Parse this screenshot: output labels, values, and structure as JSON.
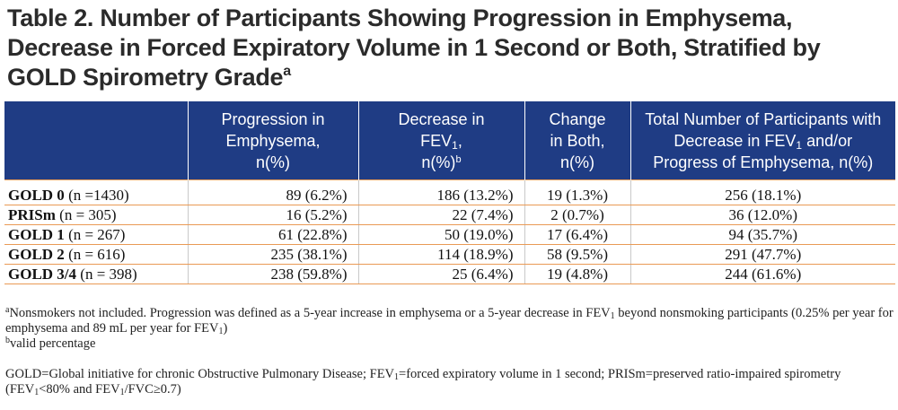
{
  "title": {
    "line1": "Table 2. Number of Participants Showing Progression in Emphysema,",
    "line2": "Decrease in Forced Expiratory Volume in 1 Second or Both, Stratified by",
    "line3": "GOLD Spirometry Grade",
    "sup": "a"
  },
  "header": {
    "col1": [
      "Progression in",
      "Emphysema,",
      "n(%)"
    ],
    "col2": {
      "line1": "Decrease in",
      "line2_a": "FEV",
      "line2_sub": "1",
      "line2_b": ",",
      "line3_a": "n(%)",
      "line3_sup": "b"
    },
    "col3": [
      "Change",
      "in Both,",
      "n(%)"
    ],
    "col4": {
      "line1": "Total Number of Participants with",
      "line2_a": "Decrease in FEV",
      "line2_sub": "1",
      "line2_b": " and/or",
      "line3": "Progress of Emphysema, n(%)"
    }
  },
  "rows": [
    {
      "grade": "GOLD 0",
      "n": " (n =1430)",
      "emph": "89 (6.2%)",
      "fev": "186 (13.2%)",
      "both": "19 (1.3%)",
      "total": "256 (18.1%)"
    },
    {
      "grade": "PRISm",
      "n": " (n = 305)",
      "emph": "16 (5.2%)",
      "fev": "22 (7.4%)",
      "both": "2 (0.7%)",
      "total": "36 (12.0%)"
    },
    {
      "grade": "GOLD 1",
      "n": " (n = 267)",
      "emph": "61 (22.8%)",
      "fev": "50 (19.0%)",
      "both": "17 (6.4%)",
      "total": "94 (35.7%)"
    },
    {
      "grade": "GOLD 2",
      "n": " (n = 616)",
      "emph": "235 (38.1%)",
      "fev": "114 (18.9%)",
      "both": "58 (9.5%)",
      "total": "291 (47.7%)"
    },
    {
      "grade": "GOLD 3/4",
      "n": " (n = 398)",
      "emph": "238 (59.8%)",
      "fev": "25 (6.4%)",
      "both": "19 (4.8%)",
      "total": "244 (61.6%)"
    }
  ],
  "notes": {
    "a_mark": "a",
    "a_p1": "Nonsmokers not included. Progression was defined as a 5-year increase in emphysema or a 5-year decrease in FEV",
    "a_sub1": "1",
    "a_p2": " beyond nonsmoking participants (0.25% per year for emphysema and 89 mL per year for FEV",
    "a_sub2": "1",
    "a_p3": ")",
    "b_mark": "b",
    "b_text": "valid percentage",
    "g_p1": "GOLD=Global initiative for chronic Obstructive Pulmonary Disease; FEV",
    "g_sub1": "1",
    "g_p2": "=forced expiratory volume in 1 second; PRISm=preserved ratio-impaired spirometry (FEV",
    "g_sub2": "1",
    "g_p3": "<80% and FEV",
    "g_sub3": "1",
    "g_p4": "/FVC≥0.7)"
  },
  "colors": {
    "header_bg": "#1f3c84",
    "row_rule": "#e99a55",
    "title_text": "#2b2b2b"
  }
}
